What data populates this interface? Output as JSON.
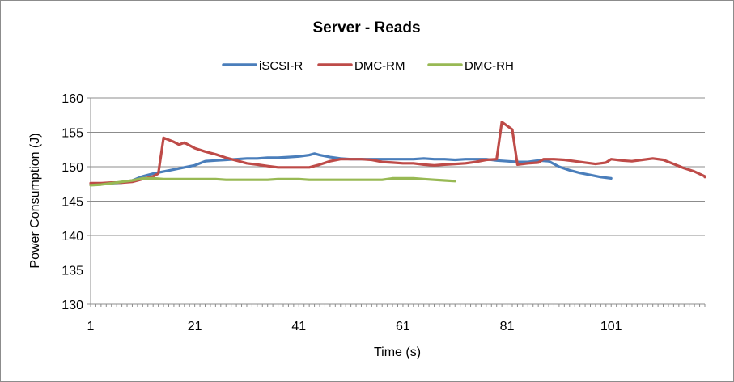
{
  "chart_data": {
    "type": "line",
    "title": "Server - Reads",
    "xlabel": "Time (s)",
    "ylabel": "Power Consumption (J)",
    "xlim": [
      1,
      119
    ],
    "ylim": [
      130,
      160
    ],
    "x_ticks": [
      1,
      21,
      41,
      61,
      81,
      101
    ],
    "x_tick_labels": [
      "1",
      "21",
      "41",
      "61",
      "81",
      "101"
    ],
    "y_ticks": [
      130,
      135,
      140,
      145,
      150,
      155,
      160
    ],
    "y_tick_labels": [
      "130",
      "135",
      "140",
      "145",
      "150",
      "155",
      "160"
    ],
    "grid": "horizontal",
    "legend_position": "top",
    "series": [
      {
        "name": "iSCSI-R",
        "color": "#4a7ebb",
        "points": [
          [
            1,
            147.4
          ],
          [
            3,
            147.5
          ],
          [
            5,
            147.6
          ],
          [
            7,
            147.7
          ],
          [
            9,
            148.0
          ],
          [
            11,
            148.6
          ],
          [
            13,
            149.0
          ],
          [
            15,
            149.3
          ],
          [
            17,
            149.6
          ],
          [
            19,
            149.9
          ],
          [
            21,
            150.2
          ],
          [
            23,
            150.8
          ],
          [
            25,
            150.9
          ],
          [
            27,
            151.0
          ],
          [
            29,
            151.1
          ],
          [
            31,
            151.2
          ],
          [
            33,
            151.2
          ],
          [
            35,
            151.3
          ],
          [
            37,
            151.3
          ],
          [
            39,
            151.4
          ],
          [
            41,
            151.5
          ],
          [
            43,
            151.7
          ],
          [
            44,
            151.9
          ],
          [
            45,
            151.7
          ],
          [
            47,
            151.4
          ],
          [
            49,
            151.2
          ],
          [
            51,
            151.1
          ],
          [
            53,
            151.1
          ],
          [
            55,
            151.1
          ],
          [
            57,
            151.1
          ],
          [
            59,
            151.1
          ],
          [
            61,
            151.1
          ],
          [
            63,
            151.1
          ],
          [
            65,
            151.2
          ],
          [
            67,
            151.1
          ],
          [
            69,
            151.1
          ],
          [
            71,
            151.0
          ],
          [
            73,
            151.1
          ],
          [
            75,
            151.1
          ],
          [
            77,
            151.1
          ],
          [
            79,
            150.9
          ],
          [
            81,
            150.8
          ],
          [
            83,
            150.7
          ],
          [
            85,
            150.7
          ],
          [
            87,
            150.9
          ],
          [
            89,
            150.8
          ],
          [
            91,
            150.0
          ],
          [
            93,
            149.5
          ],
          [
            95,
            149.1
          ],
          [
            97,
            148.8
          ],
          [
            99,
            148.5
          ],
          [
            101,
            148.3
          ]
        ]
      },
      {
        "name": "DMC-RM",
        "color": "#be4b48",
        "points": [
          [
            1,
            147.6
          ],
          [
            3,
            147.6
          ],
          [
            5,
            147.7
          ],
          [
            7,
            147.7
          ],
          [
            9,
            147.8
          ],
          [
            11,
            148.2
          ],
          [
            13,
            148.6
          ],
          [
            14,
            149.0
          ],
          [
            15,
            154.2
          ],
          [
            17,
            153.6
          ],
          [
            18,
            153.2
          ],
          [
            19,
            153.5
          ],
          [
            21,
            152.7
          ],
          [
            23,
            152.2
          ],
          [
            25,
            151.8
          ],
          [
            27,
            151.3
          ],
          [
            29,
            150.9
          ],
          [
            31,
            150.5
          ],
          [
            33,
            150.3
          ],
          [
            35,
            150.1
          ],
          [
            37,
            149.9
          ],
          [
            39,
            149.9
          ],
          [
            41,
            149.9
          ],
          [
            43,
            149.9
          ],
          [
            45,
            150.3
          ],
          [
            47,
            150.8
          ],
          [
            49,
            151.1
          ],
          [
            51,
            151.1
          ],
          [
            53,
            151.1
          ],
          [
            55,
            151.0
          ],
          [
            57,
            150.7
          ],
          [
            59,
            150.6
          ],
          [
            61,
            150.5
          ],
          [
            63,
            150.5
          ],
          [
            65,
            150.3
          ],
          [
            67,
            150.2
          ],
          [
            69,
            150.3
          ],
          [
            71,
            150.4
          ],
          [
            73,
            150.5
          ],
          [
            75,
            150.7
          ],
          [
            77,
            151.0
          ],
          [
            79,
            151.1
          ],
          [
            80,
            156.5
          ],
          [
            82,
            155.4
          ],
          [
            83,
            150.3
          ],
          [
            85,
            150.5
          ],
          [
            87,
            150.6
          ],
          [
            88,
            151.1
          ],
          [
            90,
            151.1
          ],
          [
            92,
            151.0
          ],
          [
            94,
            150.8
          ],
          [
            96,
            150.6
          ],
          [
            98,
            150.4
          ],
          [
            100,
            150.6
          ],
          [
            101,
            151.1
          ],
          [
            103,
            150.9
          ],
          [
            105,
            150.8
          ],
          [
            107,
            151.0
          ],
          [
            109,
            151.2
          ],
          [
            111,
            151.0
          ],
          [
            113,
            150.4
          ],
          [
            115,
            149.8
          ],
          [
            117,
            149.3
          ],
          [
            119,
            148.6
          ],
          [
            120,
            148.5
          ]
        ]
      },
      {
        "name": "DMC-RH",
        "color": "#98b954",
        "points": [
          [
            1,
            147.3
          ],
          [
            3,
            147.4
          ],
          [
            5,
            147.6
          ],
          [
            7,
            147.8
          ],
          [
            9,
            148.0
          ],
          [
            11,
            148.3
          ],
          [
            13,
            148.3
          ],
          [
            15,
            148.2
          ],
          [
            17,
            148.2
          ],
          [
            19,
            148.2
          ],
          [
            21,
            148.2
          ],
          [
            23,
            148.2
          ],
          [
            25,
            148.2
          ],
          [
            27,
            148.1
          ],
          [
            29,
            148.1
          ],
          [
            31,
            148.1
          ],
          [
            33,
            148.1
          ],
          [
            35,
            148.1
          ],
          [
            37,
            148.2
          ],
          [
            39,
            148.2
          ],
          [
            41,
            148.2
          ],
          [
            43,
            148.1
          ],
          [
            45,
            148.1
          ],
          [
            47,
            148.1
          ],
          [
            49,
            148.1
          ],
          [
            51,
            148.1
          ],
          [
            53,
            148.1
          ],
          [
            55,
            148.1
          ],
          [
            57,
            148.1
          ],
          [
            59,
            148.3
          ],
          [
            61,
            148.3
          ],
          [
            63,
            148.3
          ],
          [
            65,
            148.2
          ],
          [
            67,
            148.1
          ],
          [
            69,
            148.0
          ],
          [
            71,
            147.9
          ]
        ]
      }
    ]
  }
}
